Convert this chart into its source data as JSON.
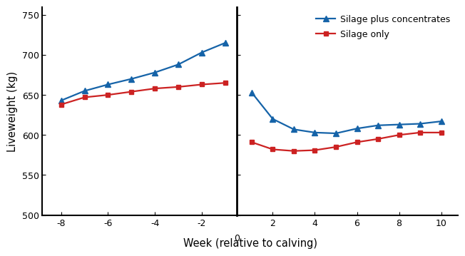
{
  "silage_conc_x_left": [
    -8,
    -7,
    -6,
    -5,
    -4,
    -3,
    -2,
    -1
  ],
  "silage_conc_y_left": [
    643,
    655,
    663,
    670,
    678,
    688,
    703,
    715
  ],
  "silage_conc_x_right": [
    1,
    2,
    3,
    4,
    5,
    6,
    7,
    8,
    9,
    10
  ],
  "silage_conc_y_right": [
    653,
    620,
    607,
    603,
    602,
    608,
    612,
    613,
    614,
    617
  ],
  "silage_only_x_left": [
    -8,
    -7,
    -6,
    -5,
    -4,
    -3,
    -2,
    -1
  ],
  "silage_only_y_left": [
    638,
    647,
    650,
    654,
    658,
    660,
    663,
    665
  ],
  "silage_only_x_right": [
    1,
    2,
    3,
    4,
    5,
    6,
    7,
    8,
    9,
    10
  ],
  "silage_only_y_right": [
    591,
    582,
    580,
    581,
    585,
    591,
    595,
    600,
    603,
    603
  ],
  "legend_labels": [
    "Silage plus concentrates",
    "Silage only"
  ],
  "line_colors": [
    "#1563a8",
    "#cc2222"
  ],
  "ylabel": "Liveweight (kg)",
  "xlabel": "Week (relative to calving)",
  "ylim": [
    500,
    760
  ],
  "yticks": [
    500,
    550,
    600,
    650,
    700,
    750
  ],
  "xlim_left": [
    -9,
    0
  ],
  "xlim_right": [
    0,
    10.5
  ],
  "background_color": "#ffffff",
  "spine_color": "#000000"
}
